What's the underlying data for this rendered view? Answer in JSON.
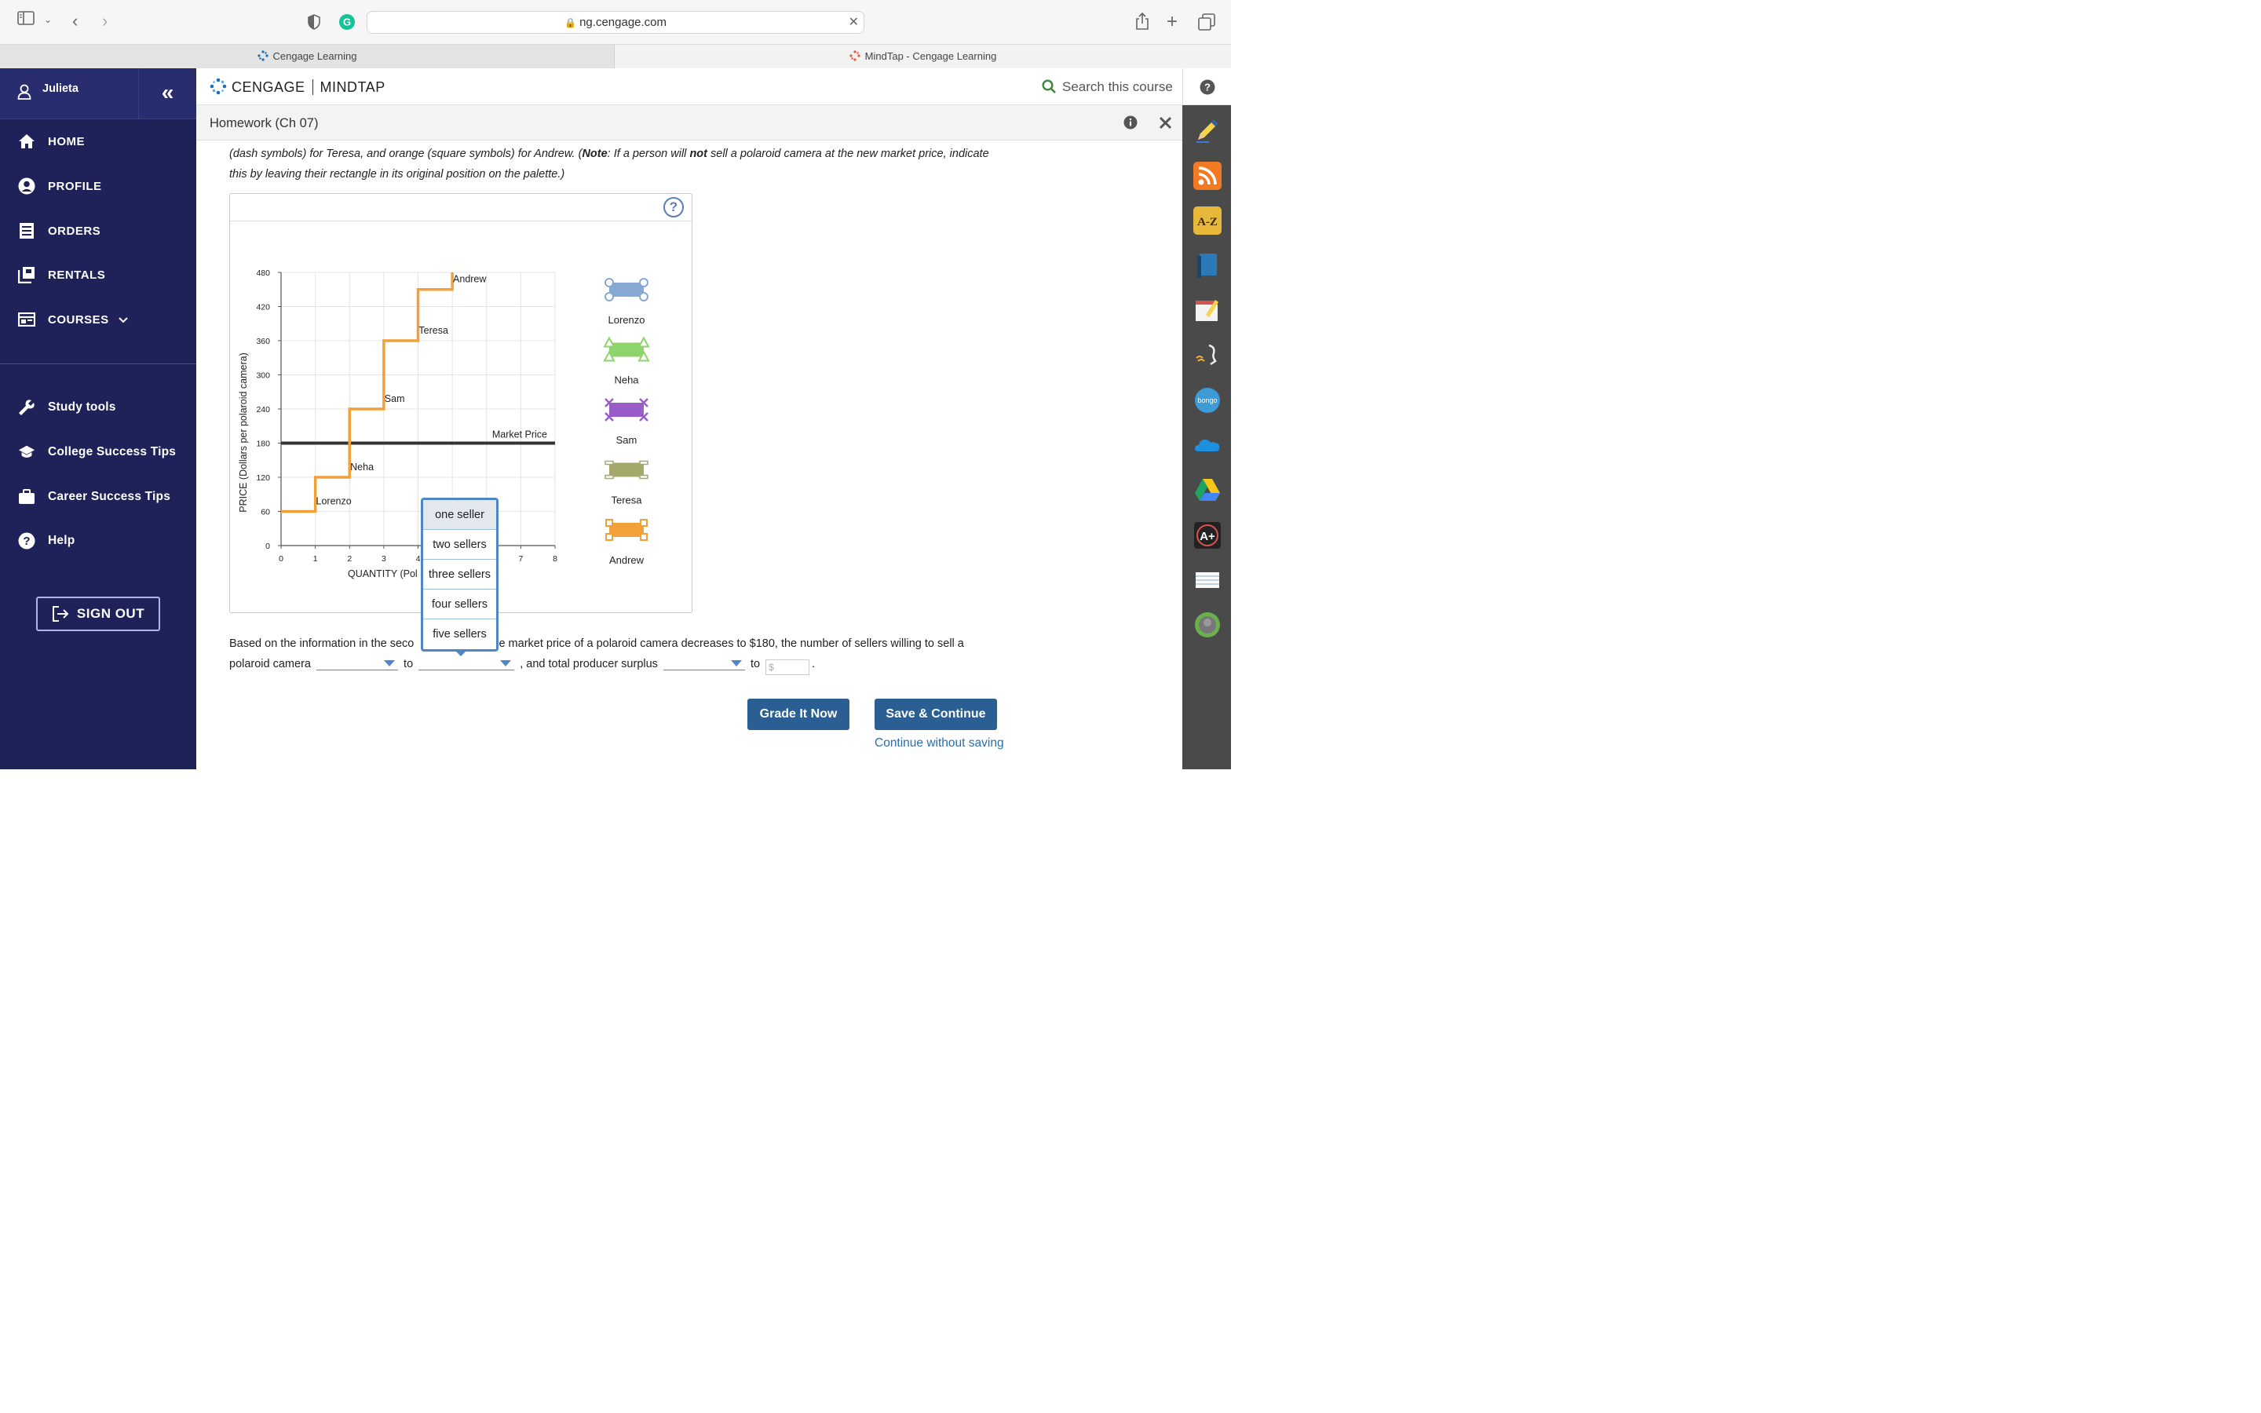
{
  "browser": {
    "url": "ng.cengage.com",
    "tabs": [
      {
        "label": "Cengage Learning"
      },
      {
        "label": "MindTap - Cengage Learning"
      }
    ]
  },
  "sidebar": {
    "user_name": "Julieta",
    "nav": [
      {
        "label": "HOME",
        "icon": "home-icon"
      },
      {
        "label": "PROFILE",
        "icon": "profile-icon"
      },
      {
        "label": "ORDERS",
        "icon": "orders-icon"
      },
      {
        "label": "RENTALS",
        "icon": "rentals-icon"
      },
      {
        "label": "COURSES",
        "icon": "courses-icon"
      }
    ],
    "lower_nav": [
      {
        "label": "Study tools",
        "icon": "wrench-icon"
      },
      {
        "label": "College Success Tips",
        "icon": "graduation-cap-icon"
      },
      {
        "label": "Career Success Tips",
        "icon": "briefcase-icon"
      },
      {
        "label": "Help",
        "icon": "help-icon"
      }
    ],
    "sign_out_label": "SIGN OUT"
  },
  "header": {
    "brand_left": "CENGAGE",
    "brand_right": "MINDTAP",
    "search_placeholder": "Search this course"
  },
  "title_bar": {
    "title": "Homework (Ch 07)"
  },
  "content": {
    "instruction_pre": "(dash symbols) for Teresa, and orange (square symbols) for Andrew. (",
    "instruction_note": "Note",
    "instruction_mid": ": If a person will ",
    "instruction_not": "not",
    "instruction_post": " sell a polaroid camera at the new market price, indicate this by leaving their rectangle in its original position on the palette.)",
    "question_part1": "Based on the information in the seco",
    "question_part2": "the market price of a polaroid camera decreases to $180, the number of sellers willing to sell a",
    "question_part3": "polaroid camera",
    "word_to": "to",
    "question_part4": ", and total producer surplus",
    "money_placeholder": "$",
    "period": ".",
    "grade_button": "Grade It Now",
    "save_button": "Save & Continue",
    "continue_link": "Continue without saving"
  },
  "dropdown": {
    "options": [
      "one seller",
      "two sellers",
      "three sellers",
      "four sellers",
      "five sellers"
    ],
    "selected_index": 0
  },
  "palette": [
    {
      "name": "Lorenzo",
      "color": "#86a8d2",
      "symbol": "circle"
    },
    {
      "name": "Neha",
      "color": "#8fd46a",
      "symbol": "triangle"
    },
    {
      "name": "Sam",
      "color": "#9a5cc8",
      "symbol": "x"
    },
    {
      "name": "Teresa",
      "color": "#a4a86a",
      "symbol": "dash"
    },
    {
      "name": "Andrew",
      "color": "#f2a03a",
      "symbol": "square"
    }
  ],
  "chart_data": {
    "type": "line",
    "ylabel": "PRICE (Dollars per polaroid camera)",
    "xlabel_visible": "QUANTITY (Pol",
    "xlim": [
      0,
      8
    ],
    "ylim": [
      0,
      480
    ],
    "x_ticks": [
      0,
      1,
      2,
      3,
      4,
      7,
      8
    ],
    "y_ticks": [
      0,
      60,
      120,
      180,
      240,
      300,
      360,
      420,
      480
    ],
    "grid": true,
    "supply_curve": {
      "color": "#f2a03a",
      "points": [
        [
          0,
          60
        ],
        [
          1,
          60
        ],
        [
          1,
          120
        ],
        [
          2,
          120
        ],
        [
          2,
          240
        ],
        [
          3,
          240
        ],
        [
          3,
          360
        ],
        [
          4,
          360
        ],
        [
          4,
          450
        ],
        [
          5,
          450
        ],
        [
          5,
          480
        ]
      ]
    },
    "market_price": {
      "label": "Market Price",
      "value": 180,
      "color": "#333333"
    },
    "annotations": [
      {
        "text": "Lorenzo",
        "x": 1.25,
        "y": 78
      },
      {
        "text": "Neha",
        "x": 2.25,
        "y": 138
      },
      {
        "text": "Sam",
        "x": 3.25,
        "y": 258
      },
      {
        "text": "Teresa",
        "x": 4.25,
        "y": 378
      },
      {
        "text": "Andrew",
        "x": 5.25,
        "y": 468
      }
    ]
  }
}
